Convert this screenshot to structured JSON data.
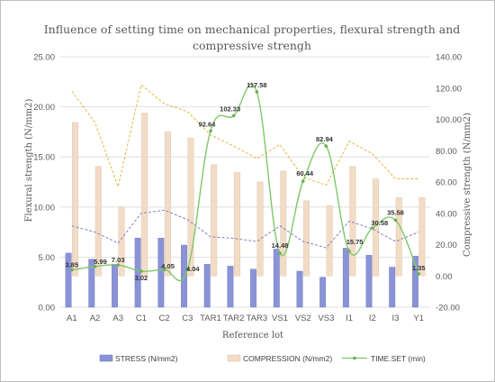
{
  "chart_data": {
    "type": "bar",
    "title_lines": [
      "Influence of setting time on mechanical properties, flexural strength and",
      "compressive strengh"
    ],
    "xlabel": "Reference lot",
    "ylabel_left": "Flexural strength (N/mm2)",
    "ylabel_right": "Compressive strength (N/mm2)",
    "ylim_left": [
      0,
      25
    ],
    "ylim_right": [
      -20,
      140
    ],
    "left_ticks": [
      "0.00",
      "5.00",
      "10.00",
      "15.00",
      "20.00",
      "25.00"
    ],
    "right_ticks": [
      "-20.00",
      "0.00",
      "20.00",
      "40.00",
      "60.00",
      "80.00",
      "100.00",
      "120.00",
      "140.00"
    ],
    "grid": true,
    "legend_position": "bottom",
    "categories": [
      "A1",
      "A2",
      "A3",
      "C1",
      "C2",
      "C3",
      "TAR1",
      "TAR2",
      "TAR3",
      "VS1",
      "VS2",
      "VS3",
      "I1",
      "I2",
      "I3",
      "Y1"
    ],
    "series": [
      {
        "name": "STRESS (N/mm2)",
        "kind": "bar",
        "axis": "left",
        "color": "#8a93d6",
        "values": [
          5.4,
          4.8,
          4.3,
          6.9,
          6.9,
          6.2,
          4.3,
          4.1,
          3.8,
          5.8,
          3.6,
          3.0,
          5.9,
          5.2,
          4.0,
          5.1
        ]
      },
      {
        "name": "COMPRESSION (N/mm2)",
        "kind": "bar",
        "axis": "right",
        "color": "#f3dcc6",
        "values": [
          98,
          70,
          44,
          104,
          92,
          88,
          71,
          66,
          60,
          67,
          48,
          45,
          70,
          62,
          50,
          50
        ]
      },
      {
        "name": "TIME.SET (min)",
        "kind": "line",
        "axis": "right",
        "color": "#7ec86a",
        "values": [
          3.85,
          5.99,
          7.03,
          3.02,
          4.05,
          4.04,
          92.64,
          102.33,
          117.58,
          14.48,
          60.44,
          82.94,
          15.75,
          30.58,
          35.58,
          1.35
        ],
        "labels": [
          "3.85",
          "5.99",
          "7.03",
          "3.02",
          "4.05",
          "4.04",
          "92.64",
          "102.33",
          "117.58",
          "14.48",
          "60.44",
          "82.94",
          "15.75",
          "30.58",
          "35.58",
          "1.35"
        ]
      }
    ],
    "envelope_lines": [
      {
        "color": "#e2b843",
        "axis": "right",
        "values": [
          118,
          98,
          57,
          122,
          110,
          105,
          90,
          83,
          75,
          84,
          63,
          58,
          86,
          78,
          62,
          62
        ]
      },
      {
        "color": "#7d86b8",
        "axis": "right",
        "values": [
          32,
          28,
          21,
          40,
          42,
          36,
          25,
          24,
          22,
          32,
          22,
          18,
          35,
          30,
          22,
          28
        ]
      }
    ],
    "colors": {
      "grid": "#d9d9d9",
      "text": "#595959",
      "frame": "#bfbfbf"
    }
  }
}
